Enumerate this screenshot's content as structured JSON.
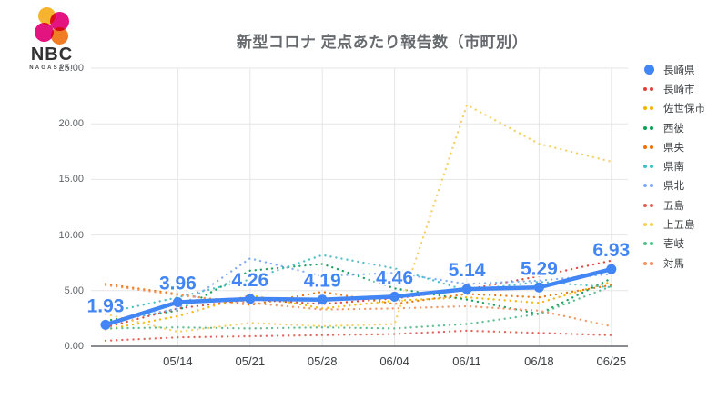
{
  "brand": {
    "name": "NBC",
    "subtitle": "NAGASAKI"
  },
  "title": "新型コロナ 定点あたり報告数（市町別）",
  "chart_data": {
    "type": "line",
    "title": "新型コロナ 定点あたり報告数（市町別）",
    "x_tick_labels": [
      "05/14",
      "05/21",
      "05/28",
      "06/04",
      "06/11",
      "06/18",
      "06/25"
    ],
    "note": "8 weekly data points; first point (week before 05/14) has no visible x label",
    "y_tick_labels": [
      "0.00",
      "5.00",
      "10.00",
      "15.00",
      "20.00",
      "25.00"
    ],
    "y_ticks": [
      0,
      5,
      10,
      15,
      20,
      25
    ],
    "ylim": [
      0,
      25
    ],
    "grid": true,
    "legend_position": "right",
    "annotation_color": "#4285F4",
    "series": [
      {
        "name": "長崎県",
        "color": "#4285F4",
        "line": "solid",
        "emphasized": true,
        "values": [
          1.93,
          3.96,
          4.26,
          4.19,
          4.46,
          5.14,
          5.29,
          6.93
        ],
        "point_labels": [
          "1.93",
          "3.96",
          "4.26",
          "4.19",
          "4.46",
          "5.14",
          "5.29",
          "6.93"
        ]
      },
      {
        "name": "長崎市",
        "color": "#DB4437",
        "line": "dotted",
        "values": [
          1.7,
          3.4,
          4.2,
          3.8,
          4.3,
          5.1,
          6.3,
          7.7
        ]
      },
      {
        "name": "佐世保市",
        "color": "#F4B400",
        "line": "dotted",
        "values": [
          1.5,
          2.7,
          4.6,
          3.4,
          4.1,
          4.4,
          3.9,
          5.8
        ]
      },
      {
        "name": "西彼",
        "color": "#0F9D58",
        "line": "dotted",
        "values": [
          2.3,
          3.2,
          6.8,
          7.4,
          5.2,
          4.2,
          2.9,
          6.1
        ]
      },
      {
        "name": "県央",
        "color": "#E8710A",
        "line": "dotted",
        "values": [
          5.6,
          4.7,
          3.7,
          4.9,
          3.8,
          4.7,
          4.4,
          5.5
        ]
      },
      {
        "name": "県南",
        "color": "#46BDC6",
        "line": "dotted",
        "values": [
          3.0,
          4.4,
          6.0,
          8.2,
          7.0,
          5.0,
          5.8,
          5.3
        ]
      },
      {
        "name": "県北",
        "color": "#7BAAF7",
        "line": "dotted",
        "values": [
          2.1,
          3.4,
          7.9,
          6.3,
          6.6,
          5.6,
          5.9,
          6.5
        ]
      },
      {
        "name": "五島",
        "color": "#E06055",
        "line": "dotted",
        "values": [
          0.5,
          0.8,
          0.9,
          1.0,
          1.1,
          1.4,
          1.2,
          1.0
        ]
      },
      {
        "name": "上五島",
        "color": "#F5CE5E",
        "line": "dotted",
        "values": [
          2.9,
          1.3,
          2.1,
          1.8,
          2.0,
          21.7,
          18.2,
          16.6
        ]
      },
      {
        "name": "壱岐",
        "color": "#57BB8A",
        "line": "dotted",
        "values": [
          1.6,
          1.7,
          1.6,
          1.7,
          1.6,
          2.0,
          2.9,
          5.4
        ]
      },
      {
        "name": "対馬",
        "color": "#F0935E",
        "line": "dotted",
        "values": [
          5.5,
          4.6,
          3.9,
          3.3,
          3.4,
          3.6,
          3.2,
          1.8
        ]
      }
    ]
  }
}
